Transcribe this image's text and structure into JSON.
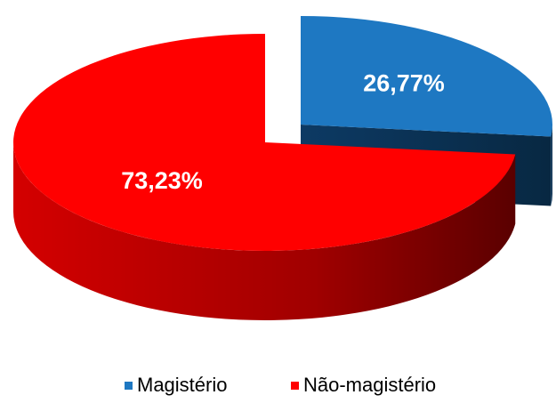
{
  "chart_data": {
    "type": "pie",
    "categories": [
      "Magistério",
      "Não-magistério"
    ],
    "values": [
      26.77,
      73.23
    ],
    "value_labels": [
      "26,77%",
      "73,23%"
    ],
    "colors": [
      "#1e78c2",
      "#ff0000"
    ],
    "legend": "bottom"
  }
}
